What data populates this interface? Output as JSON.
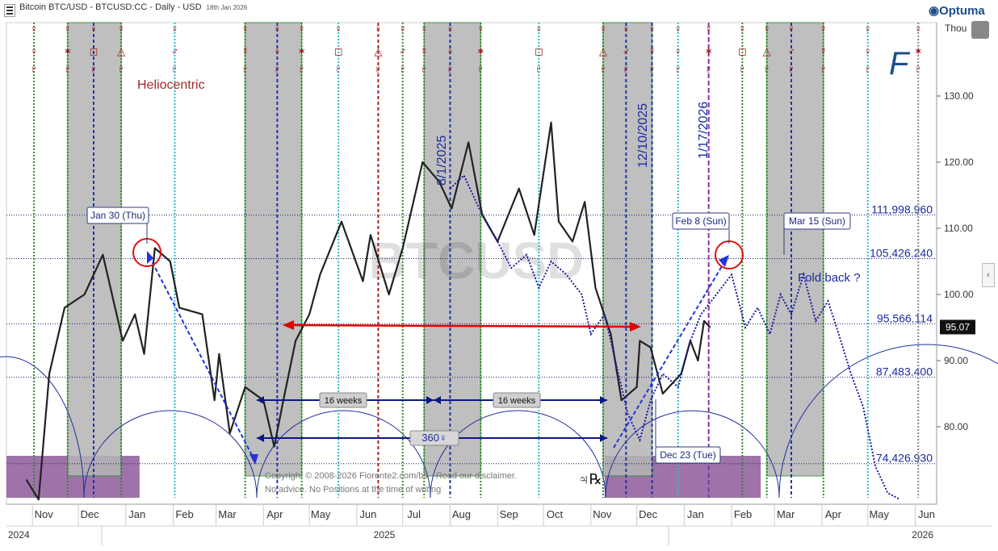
{
  "header": {
    "title": "Bitcoin BTC/USD - BTCUSD:CC - Daily - USD",
    "date": "18th Jan 2026",
    "brand": "Optuma",
    "unit": "Thou"
  },
  "colors": {
    "shade": "#b5b5b5",
    "purple_box": "#8e5a9a",
    "price": "#222222",
    "projection": "#1a1aa0",
    "arc": "#1f2f9a",
    "red_arrow": "#e00000",
    "glyph_red": "#a01818"
  },
  "chart_data": {
    "type": "line",
    "title": "Bitcoin BTC/USD - BTCUSD:CC - Daily - USD",
    "watermark": "BTCUSD",
    "x_months": [
      "Nov",
      "Dec",
      "Jan",
      "Feb",
      "Mar",
      "Apr",
      "May",
      "Jun",
      "Jul",
      "Aug",
      "Sep",
      "Oct",
      "Nov",
      "Dec",
      "Jan",
      "Feb",
      "Mar",
      "Apr",
      "May",
      "Jun"
    ],
    "years": [
      "2024",
      "2025",
      "2026"
    ],
    "y_ticks": [
      "130.00",
      "120.00",
      "110.00",
      "100.00",
      "90.00",
      "80.00"
    ],
    "current_price": "95.07",
    "levels": [
      {
        "label": "111,998.960",
        "value": 111.999
      },
      {
        "label": "105,426.240",
        "value": 105.426
      },
      {
        "label": "95,566.114",
        "value": 95.566
      },
      {
        "label": "87,483.400",
        "value": 87.483
      },
      {
        "label": "74,426.930",
        "value": 74.427
      }
    ],
    "annotations": {
      "heliocentric": "Heliocentric",
      "date1": "8/1/2025",
      "date2": "12/10/2025",
      "date3": "1/17/2026",
      "box_jan30": "Jan 30 (Thu)",
      "box_feb8": "Feb 8 (Sun)",
      "box_mar15": "Mar 15 (Sun)",
      "box_dec23": "Dec 23 (Tue)",
      "weeks1": "16 weeks",
      "weeks2": "16 weeks",
      "deg360": "360♀",
      "foldback": "Fold back ?",
      "jupiter_r": "♃℞",
      "copyright": "Copyright © 2008-2026 Fiorente2.com/bs - Read our disclaimer.",
      "advice": "No advice. No Positions at the time of writing"
    },
    "price_series": [
      {
        "date": "2024-10-28",
        "v": 72
      },
      {
        "date": "2024-11-05",
        "v": 69
      },
      {
        "date": "2024-11-12",
        "v": 88
      },
      {
        "date": "2024-11-22",
        "v": 98
      },
      {
        "date": "2024-12-05",
        "v": 100
      },
      {
        "date": "2024-12-17",
        "v": 106
      },
      {
        "date": "2024-12-30",
        "v": 93
      },
      {
        "date": "2025-01-07",
        "v": 97
      },
      {
        "date": "2025-01-13",
        "v": 91
      },
      {
        "date": "2025-01-20",
        "v": 107
      },
      {
        "date": "2025-01-30",
        "v": 105
      },
      {
        "date": "2025-02-05",
        "v": 98
      },
      {
        "date": "2025-02-20",
        "v": 97
      },
      {
        "date": "2025-02-28",
        "v": 84
      },
      {
        "date": "2025-03-03",
        "v": 91
      },
      {
        "date": "2025-03-10",
        "v": 79
      },
      {
        "date": "2025-03-20",
        "v": 86
      },
      {
        "date": "2025-04-01",
        "v": 84
      },
      {
        "date": "2025-04-08",
        "v": 77
      },
      {
        "date": "2025-04-14",
        "v": 84
      },
      {
        "date": "2025-04-22",
        "v": 93
      },
      {
        "date": "2025-05-01",
        "v": 97
      },
      {
        "date": "2025-05-08",
        "v": 103
      },
      {
        "date": "2025-05-22",
        "v": 111
      },
      {
        "date": "2025-06-05",
        "v": 102
      },
      {
        "date": "2025-06-10",
        "v": 109
      },
      {
        "date": "2025-06-22",
        "v": 100
      },
      {
        "date": "2025-07-01",
        "v": 107
      },
      {
        "date": "2025-07-14",
        "v": 120
      },
      {
        "date": "2025-07-25",
        "v": 117
      },
      {
        "date": "2025-08-02",
        "v": 113
      },
      {
        "date": "2025-08-13",
        "v": 123
      },
      {
        "date": "2025-08-22",
        "v": 112
      },
      {
        "date": "2025-09-01",
        "v": 108
      },
      {
        "date": "2025-09-15",
        "v": 116
      },
      {
        "date": "2025-09-25",
        "v": 109
      },
      {
        "date": "2025-10-06",
        "v": 126
      },
      {
        "date": "2025-10-11",
        "v": 111
      },
      {
        "date": "2025-10-20",
        "v": 108
      },
      {
        "date": "2025-10-28",
        "v": 114
      },
      {
        "date": "2025-11-04",
        "v": 101
      },
      {
        "date": "2025-11-14",
        "v": 94
      },
      {
        "date": "2025-11-21",
        "v": 84
      },
      {
        "date": "2025-12-01",
        "v": 86
      },
      {
        "date": "2025-12-03",
        "v": 93
      },
      {
        "date": "2025-12-10",
        "v": 92
      },
      {
        "date": "2025-12-18",
        "v": 85
      },
      {
        "date": "2025-12-30",
        "v": 88
      },
      {
        "date": "2026-01-05",
        "v": 93
      },
      {
        "date": "2026-01-10",
        "v": 90
      },
      {
        "date": "2026-01-14",
        "v": 96
      },
      {
        "date": "2026-01-18",
        "v": 95
      }
    ],
    "projection_series": [
      {
        "date": "2025-08-01",
        "v": 116
      },
      {
        "date": "2025-08-10",
        "v": 118
      },
      {
        "date": "2025-08-20",
        "v": 113
      },
      {
        "date": "2025-09-01",
        "v": 108
      },
      {
        "date": "2025-09-10",
        "v": 104
      },
      {
        "date": "2025-09-20",
        "v": 106
      },
      {
        "date": "2025-09-28",
        "v": 101
      },
      {
        "date": "2025-10-06",
        "v": 105
      },
      {
        "date": "2025-10-16",
        "v": 103
      },
      {
        "date": "2025-10-26",
        "v": 100
      },
      {
        "date": "2025-11-01",
        "v": 94
      },
      {
        "date": "2025-11-10",
        "v": 97
      },
      {
        "date": "2025-11-17",
        "v": 90
      },
      {
        "date": "2025-11-25",
        "v": 82
      },
      {
        "date": "2025-12-03",
        "v": 78
      },
      {
        "date": "2025-12-10",
        "v": 84
      },
      {
        "date": "2025-12-18",
        "v": 88
      },
      {
        "date": "2025-12-28",
        "v": 86
      },
      {
        "date": "2026-01-05",
        "v": 93
      },
      {
        "date": "2026-01-12",
        "v": 97
      },
      {
        "date": "2026-01-22",
        "v": 100
      },
      {
        "date": "2026-02-01",
        "v": 103
      },
      {
        "date": "2026-02-10",
        "v": 95
      },
      {
        "date": "2026-02-18",
        "v": 98
      },
      {
        "date": "2026-02-26",
        "v": 94
      },
      {
        "date": "2026-03-05",
        "v": 100
      },
      {
        "date": "2026-03-12",
        "v": 97
      },
      {
        "date": "2026-03-20",
        "v": 103
      },
      {
        "date": "2026-03-28",
        "v": 96
      },
      {
        "date": "2026-04-05",
        "v": 99
      },
      {
        "date": "2026-04-12",
        "v": 94
      },
      {
        "date": "2026-04-20",
        "v": 88
      },
      {
        "date": "2026-04-28",
        "v": 83
      },
      {
        "date": "2026-05-06",
        "v": 74
      },
      {
        "date": "2026-05-14",
        "v": 70
      },
      {
        "date": "2026-05-22",
        "v": 69
      }
    ],
    "shaded_bands": [
      [
        "2024-11-24",
        "2024-12-29"
      ],
      [
        "2025-03-20",
        "2025-04-26"
      ],
      [
        "2025-07-15",
        "2025-08-21"
      ],
      [
        "2025-11-09",
        "2025-12-11"
      ],
      [
        "2026-02-24",
        "2026-04-02"
      ]
    ],
    "purple_boxes": [
      [
        "2024-10-15",
        "2025-01-10"
      ],
      [
        "2025-11-10",
        "2026-02-20"
      ]
    ],
    "glyph_lines": [
      {
        "date": "2024-11-02",
        "style": "green"
      },
      {
        "date": "2024-11-24",
        "style": "green"
      },
      {
        "date": "2024-12-11",
        "style": "blue"
      },
      {
        "date": "2024-12-29",
        "style": "green"
      },
      {
        "date": "2025-02-02",
        "style": "cyan"
      },
      {
        "date": "2025-03-20",
        "style": "green"
      },
      {
        "date": "2025-04-10",
        "style": "blue"
      },
      {
        "date": "2025-04-26",
        "style": "green"
      },
      {
        "date": "2025-05-20",
        "style": "cyan"
      },
      {
        "date": "2025-06-15",
        "style": "red"
      },
      {
        "date": "2025-07-01",
        "style": "green"
      },
      {
        "date": "2025-07-15",
        "style": "green"
      },
      {
        "date": "2025-08-01",
        "style": "blue"
      },
      {
        "date": "2025-08-21",
        "style": "green"
      },
      {
        "date": "2025-09-28",
        "style": "cyan"
      },
      {
        "date": "2025-11-09",
        "style": "green"
      },
      {
        "date": "2025-11-24",
        "style": "blue"
      },
      {
        "date": "2025-12-11",
        "style": "blue"
      },
      {
        "date": "2025-12-28",
        "style": "cyan"
      },
      {
        "date": "2026-01-17",
        "style": "purple"
      },
      {
        "date": "2026-02-08",
        "style": "green"
      },
      {
        "date": "2026-02-24",
        "style": "green"
      },
      {
        "date": "2026-03-12",
        "style": "blue"
      },
      {
        "date": "2026-04-02",
        "style": "green"
      },
      {
        "date": "2026-05-01",
        "style": "cyan"
      },
      {
        "date": "2026-06-03",
        "style": "gray"
      }
    ]
  }
}
